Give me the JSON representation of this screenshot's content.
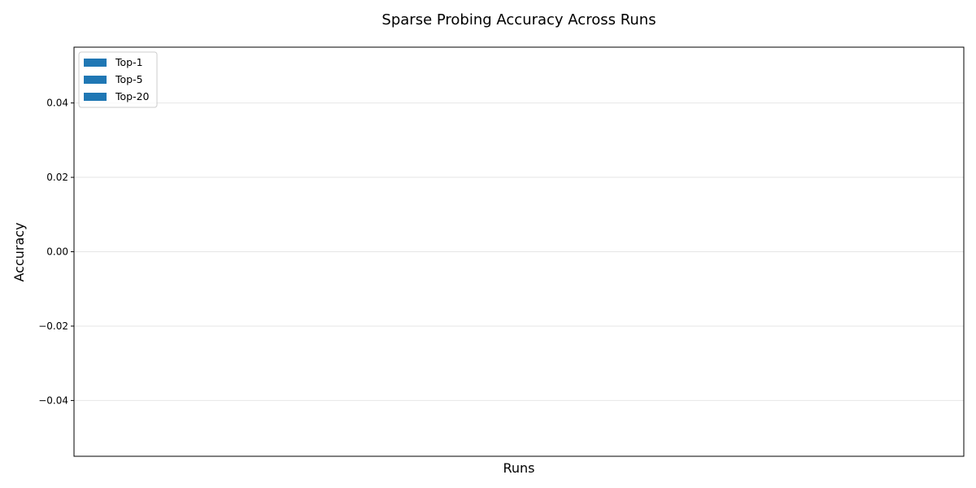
{
  "chart_data": {
    "type": "bar",
    "title": "Sparse Probing Accuracy Across Runs",
    "xlabel": "Runs",
    "ylabel": "Accuracy",
    "categories": [],
    "series": [
      {
        "name": "Top-1",
        "values": [],
        "color": "#1f77b4"
      },
      {
        "name": "Top-5",
        "values": [],
        "color": "#1f77b4"
      },
      {
        "name": "Top-20",
        "values": [],
        "color": "#1f77b4"
      }
    ],
    "ylim": [
      -0.055,
      0.055
    ],
    "yticks": [
      -0.04,
      -0.02,
      0.0,
      0.02,
      0.04
    ],
    "ytick_labels": [
      "−0.04",
      "−0.02",
      "0.00",
      "0.02",
      "0.04"
    ],
    "grid": "y",
    "legend_position": "upper left"
  }
}
